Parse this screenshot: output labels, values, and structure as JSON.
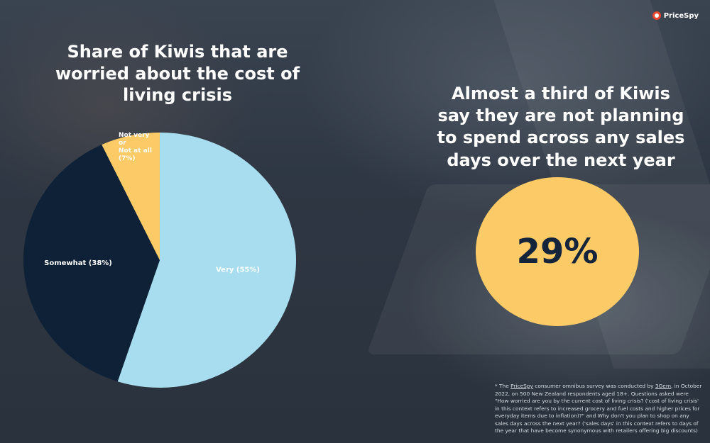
{
  "brand": {
    "name": "PriceSpy",
    "icon": "pricespy-logo-icon"
  },
  "colors": {
    "very": "#a7ddef",
    "somewhat": "#0e2136",
    "not_very": "#fcca66",
    "label_on_dark": "#ffffff",
    "stat_circle": "#fcca66",
    "stat_text": "#14243a"
  },
  "chart_data": {
    "type": "pie",
    "title": "Share of Kiwis that are worried about the cost of living crisis",
    "slices": [
      {
        "label": "Very (55%)",
        "value": 55
      },
      {
        "label": "Somewhat (38%)",
        "value": 38
      },
      {
        "label": "Not very or Not at all (7%)",
        "value": 7
      }
    ]
  },
  "stat": {
    "headline": "Almost a third of Kiwis say they are not planning to spend across any sales days over the next year",
    "value": "29%"
  },
  "footnote": {
    "p1": "* The ",
    "pricespy": "PriceSpy",
    "p2": " consumer omnibus survey was conducted by ",
    "threegem": "3Gem",
    "p3": ", in October 2022, on 500 New Zealand respondents aged 18+. Questions asked were \"How worried are you by the current cost of living crisis? ('cost of living crisis' in this context refers to increased grocery and fuel costs and higher prices for everyday items due to inflation)?\" and Why don't you plan to shop on any sales days across the next year? ('sales days' in this context refers to days of the year that have become synonymous with retailers offering big discounts)"
  }
}
